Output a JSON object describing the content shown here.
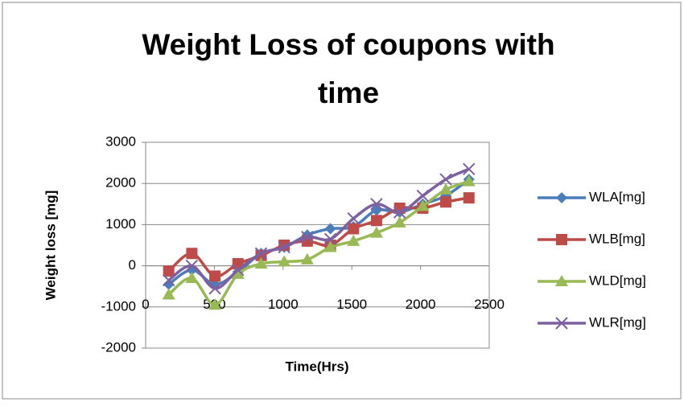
{
  "chart_data": {
    "type": "scatter-smooth",
    "title": "Weight Loss of coupons with time",
    "x_label": "Time(Hrs)",
    "y_label": "Weight loss [mg]",
    "x": [
      168,
      336,
      504,
      672,
      840,
      1008,
      1176,
      1344,
      1512,
      1680,
      1848,
      2016,
      2184,
      2352
    ],
    "series": [
      {
        "name": "WLA[mg]",
        "color": "#4a7ebb",
        "marker": "diamond",
        "values": [
          -450,
          -100,
          -450,
          -150,
          300,
          450,
          750,
          900,
          950,
          1350,
          1300,
          1500,
          1700,
          2100
        ]
      },
      {
        "name": "WLB[mg]",
        "color": "#be4b48",
        "marker": "square",
        "values": [
          -130,
          300,
          -250,
          50,
          250,
          500,
          600,
          500,
          900,
          1100,
          1400,
          1400,
          1550,
          1650
        ]
      },
      {
        "name": "WLD[mg]",
        "color": "#98b954",
        "marker": "triangle",
        "values": [
          -700,
          -300,
          -950,
          -200,
          50,
          100,
          150,
          450,
          600,
          800,
          1050,
          1450,
          1850,
          2050
        ]
      },
      {
        "name": "WLR[mg]",
        "color": "#7d60a0",
        "marker": "x",
        "values": [
          -350,
          0,
          -550,
          -100,
          300,
          450,
          700,
          650,
          1150,
          1500,
          1300,
          1700,
          2100,
          2350
        ]
      }
    ],
    "xlim": [
      0,
      2500
    ],
    "xticks": [
      0,
      500,
      1000,
      1500,
      2000,
      2500
    ],
    "ylim": [
      -2000,
      3000
    ],
    "yticks": [
      -2000,
      -1000,
      0,
      1000,
      2000,
      3000
    ],
    "grid": true,
    "legend": "right"
  }
}
